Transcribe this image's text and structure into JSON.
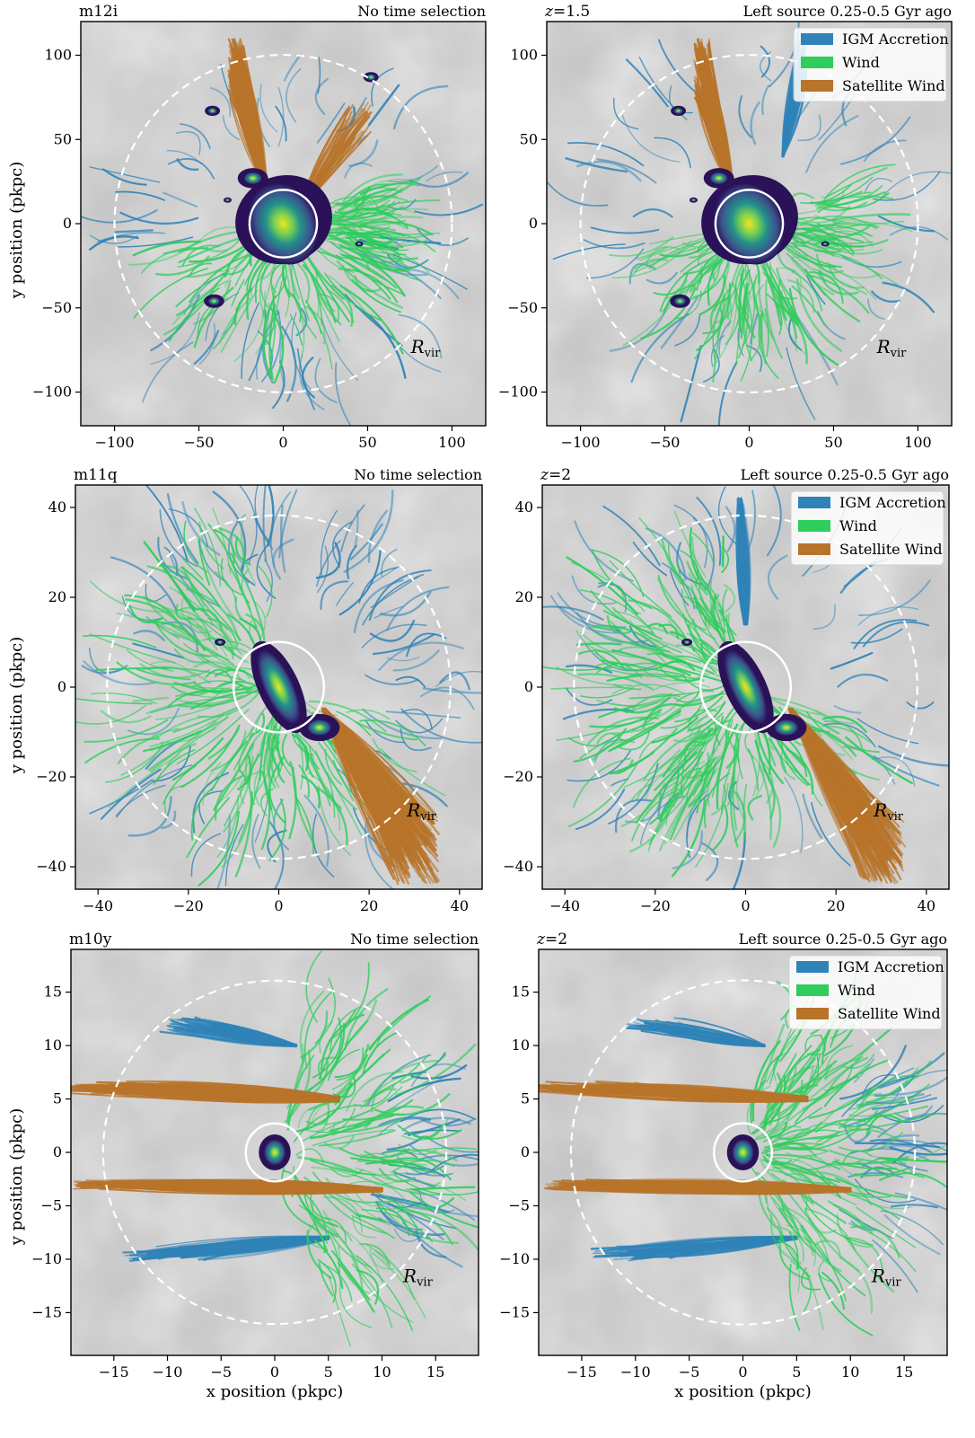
{
  "colors": {
    "igm": "#2f83b8",
    "wind": "#2fcd5c",
    "satellite": "#b8742a",
    "bg": "#c4c4c4",
    "galaxy_outer": "#2a1158",
    "galaxy_mid": "#22918b",
    "galaxy_core": "#f1e51d"
  },
  "legend": [
    "IGM Accretion",
    "Wind",
    "Satellite Wind"
  ],
  "rvir_label": {
    "main": "R",
    "sub": "vir"
  },
  "shared_xlabel": "x position (pkpc)",
  "shared_ylabel": "y position (pkpc)",
  "chart_data": [
    {
      "type": "scatter",
      "panel": "m12i-all",
      "title_left": "m12i",
      "title_right": "No time selection",
      "xlim": [
        -120,
        120
      ],
      "ylim": [
        -120,
        120
      ],
      "xticks": [
        -100,
        -50,
        0,
        50,
        100
      ],
      "yticks": [
        -100,
        -50,
        0,
        50,
        100
      ],
      "rvir": 100,
      "rgal": 20,
      "legend": false,
      "xlabel": "",
      "ylabel": "y position (pkpc)",
      "galaxy_center": [
        0,
        0
      ],
      "satellites": [
        [
          -18,
          27,
          6
        ],
        [
          -42,
          67,
          3
        ],
        [
          -41,
          -46,
          4
        ],
        [
          52,
          87,
          3
        ],
        [
          -33,
          14,
          1
        ],
        [
          45,
          -12,
          1
        ]
      ]
    },
    {
      "type": "scatter",
      "panel": "m12i-recent",
      "title_left": "z = 1.5",
      "title_right": "Left source 0.25-0.5 Gyr ago",
      "xlim": [
        -120,
        120
      ],
      "ylim": [
        -120,
        120
      ],
      "xticks": [
        -100,
        -50,
        0,
        50,
        100
      ],
      "yticks": [
        -100,
        -50,
        0,
        50,
        100
      ],
      "rvir": 100,
      "rgal": 20,
      "legend": true,
      "xlabel": "",
      "ylabel": "",
      "galaxy_center": [
        0,
        0
      ],
      "satellites": [
        [
          -18,
          27,
          6
        ],
        [
          -42,
          67,
          3
        ],
        [
          -41,
          -46,
          4
        ],
        [
          -33,
          14,
          1
        ],
        [
          45,
          -12,
          1
        ]
      ]
    },
    {
      "type": "scatter",
      "panel": "m11q-all",
      "title_left": "m11q",
      "title_right": "No time selection",
      "xlim": [
        -45,
        45
      ],
      "ylim": [
        -45,
        45
      ],
      "xticks": [
        -40,
        -20,
        0,
        20,
        40
      ],
      "yticks": [
        -40,
        -20,
        0,
        20,
        40
      ],
      "rvir": 38,
      "rgal": 10,
      "legend": false,
      "xlabel": "",
      "ylabel": "y position (pkpc)",
      "galaxy_center": [
        0,
        0
      ],
      "satellites": [
        [
          9,
          -9,
          3
        ],
        [
          -13,
          10,
          0.8
        ]
      ]
    },
    {
      "type": "scatter",
      "panel": "m11q-recent",
      "title_left": "z = 2",
      "title_right": "Left source 0.25-0.5 Gyr ago",
      "xlim": [
        -45,
        45
      ],
      "ylim": [
        -45,
        45
      ],
      "xticks": [
        -40,
        -20,
        0,
        20,
        40
      ],
      "yticks": [
        -40,
        -20,
        0,
        20,
        40
      ],
      "rvir": 38,
      "rgal": 10,
      "legend": true,
      "xlabel": "",
      "ylabel": "",
      "galaxy_center": [
        0,
        0
      ],
      "satellites": [
        [
          9,
          -9,
          3
        ],
        [
          -13,
          10,
          0.8
        ]
      ]
    },
    {
      "type": "scatter",
      "panel": "m10y-all",
      "title_left": "m10y",
      "title_right": "No time selection",
      "xlim": [
        -19,
        19
      ],
      "ylim": [
        -19,
        19
      ],
      "xticks": [
        -15,
        -10,
        -5,
        0,
        5,
        10,
        15
      ],
      "yticks": [
        -15,
        -10,
        -5,
        0,
        5,
        10,
        15
      ],
      "rvir": 16,
      "rgal": 2.7,
      "legend": false,
      "xlabel": "x position (pkpc)",
      "ylabel": "y position (pkpc)",
      "galaxy_center": [
        0,
        0
      ],
      "satellites": []
    },
    {
      "type": "scatter",
      "panel": "m10y-recent",
      "title_left": "z = 2",
      "title_right": "Left source 0.25-0.5 Gyr ago",
      "xlim": [
        -19,
        19
      ],
      "ylim": [
        -19,
        19
      ],
      "xticks": [
        -15,
        -10,
        -5,
        0,
        5,
        10,
        15
      ],
      "yticks": [
        -15,
        -10,
        -5,
        0,
        5,
        10,
        15
      ],
      "rvir": 16,
      "rgal": 2.7,
      "legend": true,
      "xlabel": "x position (pkpc)",
      "ylabel": "",
      "galaxy_center": [
        0,
        0
      ],
      "satellites": []
    }
  ]
}
